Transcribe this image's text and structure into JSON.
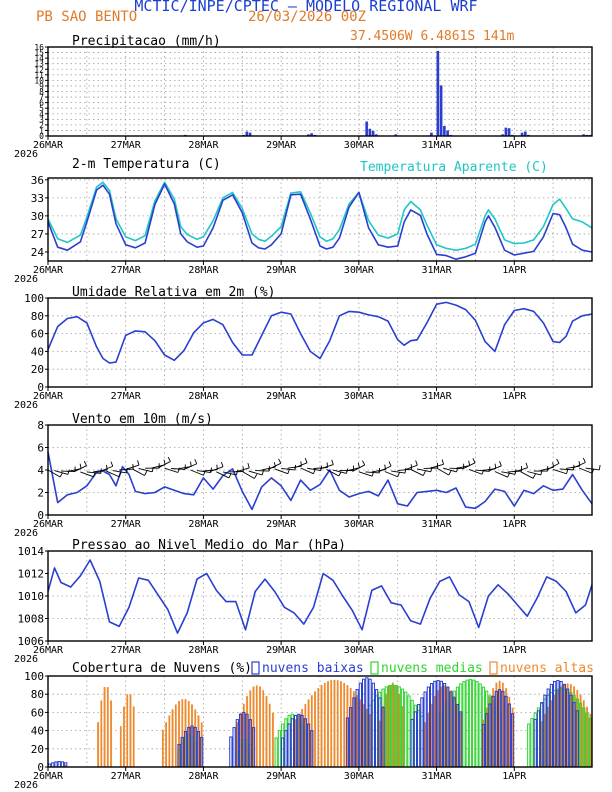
{
  "header": {
    "agency": "MCTIC/INPE/CPTEC",
    "model": "MODELO REGIONAL WRF",
    "station": "PB SAO BENTO",
    "run": "26/03/2026 00Z",
    "location": "37.4506W 6.4861S 141m"
  },
  "colors": {
    "blue": "#2a3fd0",
    "cyan": "#1fc6c6",
    "orange": "#ed8a2e",
    "green": "#2fd42f",
    "grid": "#a0a0a0"
  },
  "time_axis": {
    "labels": [
      "26MAR",
      "27MAR",
      "28MAR",
      "29MAR",
      "30MAR",
      "31MAR",
      "1APR"
    ],
    "year": "2026"
  },
  "chart_data": [
    {
      "type": "bar",
      "title": "Precipitacao (mm/h)",
      "unit": "mm/h",
      "ylim": [
        0,
        16
      ],
      "yticks": [
        0,
        1,
        2,
        3,
        4,
        5,
        6,
        7,
        8,
        9,
        10,
        11,
        12,
        13,
        14,
        15,
        16
      ],
      "x_hours_start": 0,
      "x_hours_end": 168,
      "bars": [
        [
          19,
          0.1
        ],
        [
          20,
          0.1
        ],
        [
          21,
          0.1
        ],
        [
          22,
          0.1
        ],
        [
          41,
          0.1
        ],
        [
          42,
          0.2
        ],
        [
          43,
          0.1
        ],
        [
          57,
          0.1
        ],
        [
          58,
          0.1
        ],
        [
          59,
          0.1
        ],
        [
          60,
          0.2
        ],
        [
          61,
          0.8
        ],
        [
          62,
          0.6
        ],
        [
          63,
          0.1
        ],
        [
          80,
          0.3
        ],
        [
          81,
          0.5
        ],
        [
          82,
          0.2
        ],
        [
          96,
          0.1
        ],
        [
          97,
          0.1
        ],
        [
          98,
          2.6
        ],
        [
          99,
          1.3
        ],
        [
          100,
          0.9
        ],
        [
          101,
          0.3
        ],
        [
          107,
          0.3
        ],
        [
          117,
          0.1
        ],
        [
          118,
          0.6
        ],
        [
          120,
          15.3
        ],
        [
          121,
          9.1
        ],
        [
          122,
          1.8
        ],
        [
          123,
          1.0
        ],
        [
          124,
          0.2
        ],
        [
          140,
          0.3
        ],
        [
          141,
          1.5
        ],
        [
          142,
          1.4
        ],
        [
          143,
          0.2
        ],
        [
          146,
          0.6
        ],
        [
          147,
          0.8
        ],
        [
          148,
          0.2
        ],
        [
          165,
          0.3
        ],
        [
          166,
          0.2
        ],
        [
          167,
          0.2
        ]
      ]
    },
    {
      "type": "line",
      "title": "2-m Temperatura (C)",
      "unit": "C",
      "ylim": [
        22.5,
        36.3
      ],
      "yticks": [
        24,
        27,
        30,
        33,
        36
      ],
      "series": [
        {
          "name": "Temperatura",
          "color": "#2a3fd0",
          "x": [
            0,
            3,
            6,
            10,
            12,
            15,
            17,
            19,
            21,
            24,
            27,
            30,
            33,
            36,
            39,
            41,
            43,
            46,
            48,
            51,
            54,
            57,
            60,
            63,
            65,
            67,
            69,
            72,
            75,
            78,
            81,
            84,
            86,
            88,
            90,
            93,
            96,
            99,
            102,
            105,
            108,
            110,
            112,
            115,
            117,
            120,
            123,
            126,
            129,
            132,
            135,
            136,
            138,
            141,
            144,
            147,
            150,
            153,
            156,
            158,
            160,
            162,
            165,
            168
          ],
          "y": [
            29.0,
            24.8,
            24.3,
            25.7,
            29.0,
            34.3,
            35.1,
            33.6,
            28.7,
            25.2,
            24.7,
            25.5,
            31.9,
            35.3,
            32.0,
            27.0,
            25.7,
            24.8,
            25.0,
            28.0,
            32.6,
            33.5,
            30.5,
            25.5,
            24.7,
            24.5,
            25.2,
            27.0,
            33.5,
            33.6,
            29.5,
            25.0,
            24.5,
            24.8,
            26.3,
            31.5,
            33.9,
            28.0,
            25.2,
            24.8,
            25.0,
            29.0,
            31.0,
            30.1,
            27.0,
            23.6,
            23.4,
            22.8,
            23.2,
            23.8,
            29.0,
            30.0,
            28.1,
            24.3,
            23.5,
            23.8,
            24.1,
            26.5,
            30.4,
            30.2,
            28.0,
            25.3,
            24.3,
            24.0
          ]
        },
        {
          "name": "Temperatura Aparente (C)",
          "color": "#1fc6c6",
          "x": [
            0,
            3,
            6,
            10,
            12,
            15,
            17,
            19,
            21,
            24,
            27,
            30,
            33,
            36,
            39,
            41,
            43,
            46,
            48,
            51,
            54,
            57,
            60,
            63,
            65,
            67,
            69,
            72,
            75,
            78,
            81,
            84,
            86,
            88,
            90,
            93,
            96,
            99,
            102,
            105,
            108,
            110,
            112,
            115,
            117,
            120,
            123,
            126,
            129,
            132,
            135,
            136,
            138,
            141,
            144,
            147,
            150,
            153,
            156,
            158,
            160,
            162,
            165,
            168
          ],
          "y": [
            29.5,
            26.2,
            25.6,
            26.8,
            29.8,
            34.8,
            35.6,
            34.2,
            29.5,
            26.5,
            25.9,
            26.7,
            32.5,
            35.6,
            32.8,
            28.2,
            26.9,
            26.1,
            26.5,
            29.2,
            33.0,
            33.9,
            31.2,
            27.0,
            26.1,
            25.8,
            26.6,
            28.2,
            33.8,
            34.0,
            30.5,
            26.5,
            25.8,
            26.2,
            27.7,
            32.0,
            33.9,
            29.2,
            26.8,
            26.3,
            27.0,
            31.0,
            32.4,
            31.0,
            28.5,
            25.2,
            24.6,
            24.3,
            24.6,
            25.3,
            30.0,
            31.0,
            29.5,
            26.0,
            25.4,
            25.5,
            26.0,
            28.2,
            31.9,
            32.8,
            31.2,
            29.5,
            29.0,
            28.0
          ]
        }
      ]
    },
    {
      "type": "line",
      "title": "Umidade Relativa em 2m (%)",
      "unit": "%",
      "ylim": [
        0,
        100
      ],
      "yticks": [
        0,
        20,
        40,
        60,
        80,
        100
      ],
      "series": [
        {
          "name": "Umidade",
          "color": "#2a3fd0",
          "x": [
            0,
            3,
            6,
            9,
            12,
            15,
            17,
            19,
            21,
            24,
            27,
            30,
            33,
            36,
            39,
            42,
            45,
            48,
            51,
            54,
            57,
            60,
            63,
            66,
            69,
            72,
            75,
            78,
            81,
            84,
            87,
            90,
            93,
            96,
            99,
            102,
            105,
            108,
            110,
            112,
            114,
            117,
            120,
            123,
            126,
            129,
            132,
            135,
            138,
            141,
            144,
            147,
            150,
            153,
            156,
            158,
            160,
            162,
            165,
            168
          ],
          "y": [
            42,
            68,
            77,
            79,
            72,
            45,
            32,
            27,
            28,
            58,
            63,
            62,
            52,
            36,
            30,
            41,
            61,
            72,
            76,
            70,
            50,
            36,
            36,
            58,
            80,
            84,
            82,
            60,
            40,
            32,
            52,
            80,
            85,
            84,
            81,
            79,
            74,
            53,
            47,
            52,
            53,
            72,
            93,
            95,
            92,
            87,
            75,
            51,
            40,
            70,
            86,
            88,
            85,
            72,
            51,
            50,
            57,
            74,
            80,
            82
          ]
        }
      ]
    },
    {
      "type": "line",
      "title": "Vento em 10m (m/s)",
      "unit": "m/s",
      "ylim": [
        0,
        8
      ],
      "yticks": [
        0,
        2,
        4,
        6,
        8
      ],
      "series": [
        {
          "name": "Vento",
          "color": "#2a3fd0",
          "x": [
            0,
            3,
            6,
            9,
            12,
            15,
            17,
            19,
            21,
            23,
            25,
            27,
            30,
            33,
            36,
            39,
            42,
            45,
            48,
            51,
            54,
            57,
            60,
            63,
            66,
            69,
            72,
            75,
            78,
            81,
            84,
            87,
            90,
            93,
            96,
            99,
            102,
            105,
            108,
            111,
            114,
            117,
            120,
            123,
            126,
            129,
            132,
            135,
            138,
            141,
            144,
            147,
            150,
            153,
            156,
            159,
            162,
            165,
            168
          ],
          "y": [
            5.6,
            1.1,
            1.8,
            2.0,
            2.6,
            3.8,
            3.9,
            3.6,
            2.6,
            4.3,
            3.6,
            2.1,
            1.9,
            2.0,
            2.5,
            2.2,
            1.9,
            1.8,
            3.3,
            2.3,
            3.5,
            4.1,
            2.1,
            0.5,
            2.5,
            3.3,
            2.6,
            1.3,
            3.1,
            2.2,
            2.7,
            4.0,
            2.2,
            1.6,
            1.9,
            2.1,
            1.7,
            3.1,
            1.0,
            0.8,
            2.0,
            2.1,
            2.2,
            2.0,
            2.4,
            0.7,
            0.6,
            1.2,
            2.3,
            2.1,
            0.8,
            2.2,
            1.9,
            2.6,
            2.2,
            2.3,
            3.6,
            2.2,
            1.0
          ]
        }
      ]
    },
    {
      "type": "line",
      "title": "Pressao ao Nivel Medio do Mar (hPa)",
      "unit": "hPa",
      "ylim": [
        1006,
        1014
      ],
      "yticks": [
        1006,
        1008,
        1010,
        1012,
        1014
      ],
      "series": [
        {
          "name": "Pressao",
          "color": "#2a3fd0",
          "x": [
            0,
            2,
            4,
            7,
            10,
            13,
            16,
            19,
            22,
            25,
            28,
            31,
            34,
            37,
            40,
            43,
            46,
            49,
            52,
            55,
            58,
            61,
            64,
            67,
            70,
            73,
            76,
            79,
            82,
            85,
            88,
            91,
            94,
            97,
            100,
            103,
            106,
            109,
            112,
            115,
            118,
            121,
            124,
            127,
            130,
            133,
            136,
            139,
            142,
            145,
            148,
            151,
            154,
            157,
            160,
            163,
            166,
            168
          ],
          "y": [
            1010.4,
            1012.5,
            1011.2,
            1010.8,
            1011.8,
            1013.2,
            1011.3,
            1007.7,
            1007.3,
            1009.0,
            1011.6,
            1011.4,
            1010.1,
            1008.8,
            1006.7,
            1008.5,
            1011.5,
            1012.0,
            1010.5,
            1009.5,
            1009.5,
            1007.0,
            1010.4,
            1011.5,
            1010.4,
            1009.0,
            1008.5,
            1007.5,
            1009.0,
            1012.0,
            1011.4,
            1010.0,
            1008.7,
            1007.0,
            1010.5,
            1010.9,
            1009.4,
            1009.2,
            1007.8,
            1007.5,
            1009.8,
            1011.3,
            1011.7,
            1010.1,
            1009.5,
            1007.2,
            1010.0,
            1011.0,
            1010.2,
            1009.2,
            1008.2,
            1009.8,
            1011.7,
            1011.3,
            1010.4,
            1008.5,
            1009.2,
            1011.0
          ]
        }
      ]
    },
    {
      "type": "bar",
      "title": "Cobertura de Nuvens (%)",
      "unit": "%",
      "ylim": [
        0,
        100
      ],
      "yticks": [
        0,
        20,
        40,
        60,
        80,
        100
      ],
      "series": [
        {
          "name": "nuvens altas",
          "color": "#ed8a2e",
          "style": "filled",
          "segments": [
            [
              5,
              6,
              5
            ],
            [
              15,
              20,
              90
            ],
            [
              22,
              27,
              82
            ],
            [
              35,
              48,
              75
            ],
            [
              58,
              70,
              90
            ],
            [
              76,
              100,
              96
            ],
            [
              102,
              110,
              93
            ],
            [
              116,
              128,
              90
            ],
            [
              134,
              144,
              95
            ],
            [
              152,
              168,
              92
            ]
          ]
        },
        {
          "name": "nuvens medias",
          "color": "#2fd42f",
          "style": "outline",
          "segments": [
            [
              40,
              46,
              35
            ],
            [
              58,
              63,
              30
            ],
            [
              70,
              80,
              58
            ],
            [
              96,
              116,
              90
            ],
            [
              120,
              140,
              96
            ],
            [
              148,
              168,
              86
            ]
          ]
        },
        {
          "name": "nuvens baixas",
          "color": "#2a3fd0",
          "style": "outline",
          "segments": [
            [
              0,
              6,
              6
            ],
            [
              40,
              48,
              45
            ],
            [
              56,
              64,
              60
            ],
            [
              72,
              82,
              58
            ],
            [
              92,
              104,
              98
            ],
            [
              112,
              128,
              95
            ],
            [
              134,
              144,
              85
            ],
            [
              150,
              164,
              95
            ]
          ]
        }
      ]
    }
  ]
}
